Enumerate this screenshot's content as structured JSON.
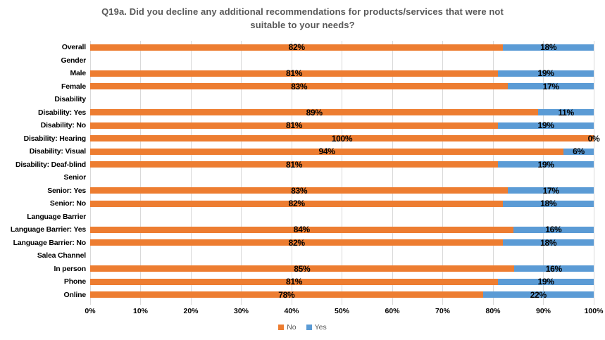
{
  "title": "Q19a. Did you decline any additional recommendations for products/services that were not\nsuitable to your needs?",
  "chart_data": {
    "type": "bar",
    "stacked": true,
    "orientation": "horizontal",
    "title": "Q19a. Did you decline any additional recommendations for products/services that were not suitable to your needs?",
    "series": [
      {
        "name": "No",
        "color": "#ED7D31"
      },
      {
        "name": "Yes",
        "color": "#5B9BD5"
      }
    ],
    "rows": [
      {
        "label": "Overall",
        "no": 82,
        "yes": 18
      },
      {
        "label": "Gender",
        "header": true
      },
      {
        "label": "Male",
        "no": 81,
        "yes": 19
      },
      {
        "label": "Female",
        "no": 83,
        "yes": 17
      },
      {
        "label": "Disability",
        "header": true
      },
      {
        "label": "Disability: Yes",
        "no": 89,
        "yes": 11
      },
      {
        "label": "Disability: No",
        "no": 81,
        "yes": 19
      },
      {
        "label": "Disability: Hearing",
        "no": 100,
        "yes": 0
      },
      {
        "label": "Disability: Visual",
        "no": 94,
        "yes": 6
      },
      {
        "label": "Disability: Deaf-blind",
        "no": 81,
        "yes": 19
      },
      {
        "label": "Senior",
        "header": true
      },
      {
        "label": "Senior: Yes",
        "no": 83,
        "yes": 17
      },
      {
        "label": "Senior: No",
        "no": 82,
        "yes": 18
      },
      {
        "label": "Language Barrier",
        "header": true
      },
      {
        "label": "Language Barrier: Yes",
        "no": 84,
        "yes": 16
      },
      {
        "label": "Language Barrier: No",
        "no": 82,
        "yes": 18
      },
      {
        "label": "Salea Channel",
        "header": true
      },
      {
        "label": "In person",
        "no": 85,
        "yes": 16
      },
      {
        "label": "Phone",
        "no": 81,
        "yes": 19
      },
      {
        "label": "Online",
        "no": 78,
        "yes": 22
      }
    ],
    "x_axis": {
      "min": 0,
      "max": 100,
      "tick_step": 10,
      "ticks": [
        "0%",
        "10%",
        "20%",
        "30%",
        "40%",
        "50%",
        "60%",
        "70%",
        "80%",
        "90%",
        "100%"
      ],
      "grid": true
    },
    "legend": {
      "position": "bottom",
      "items": [
        {
          "label": "No",
          "color": "#ED7D31"
        },
        {
          "label": "Yes",
          "color": "#5B9BD5"
        }
      ]
    },
    "colors": {
      "grid": "#D9D9D9",
      "title_text": "#595959",
      "label_text": "#000000",
      "legend_text": "#595959"
    }
  }
}
